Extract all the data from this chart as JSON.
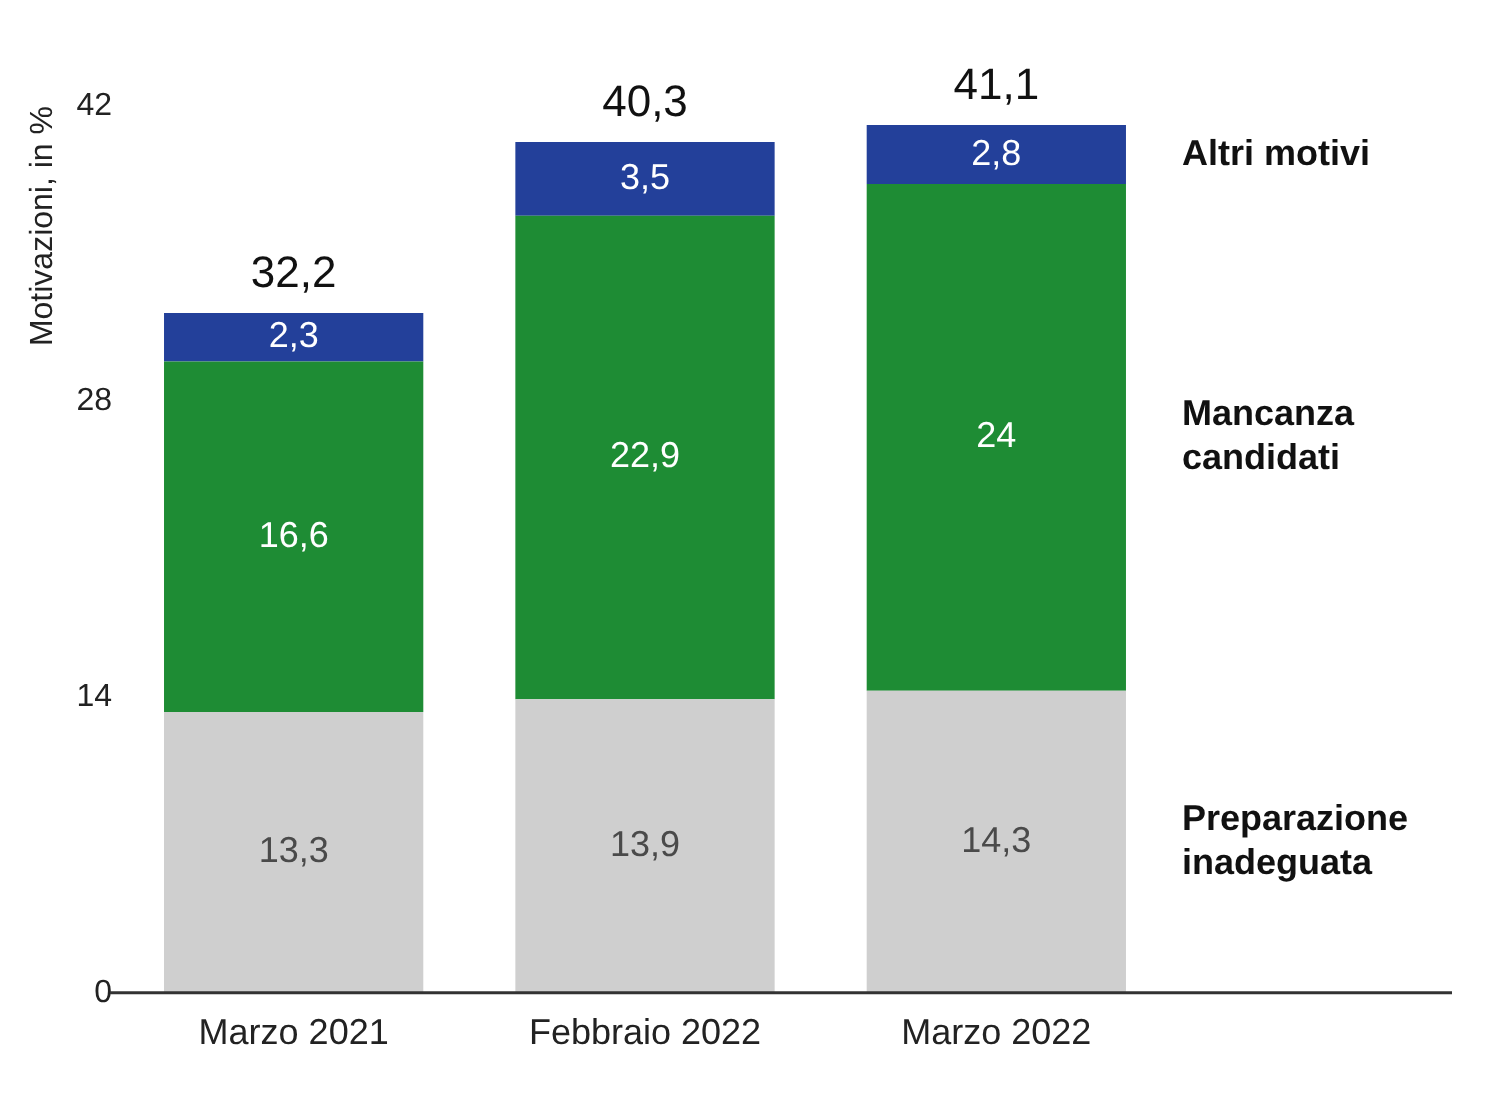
{
  "chart_data": {
    "type": "bar",
    "ylabel": "Motivazioni, in %",
    "categories": [
      "Marzo 2021",
      "Febbraio 2022",
      "Marzo 2022"
    ],
    "stacked": true,
    "ylim": [
      0,
      42
    ],
    "yticks": [
      0,
      14,
      28,
      42
    ],
    "grid": false,
    "legend": "right",
    "series": [
      {
        "name": "Preparazione inadeguata",
        "color": "#cfcfcf",
        "values": [
          13.3,
          13.9,
          14.3
        ],
        "value_labels": [
          "13,3",
          "13,9",
          "14,3"
        ]
      },
      {
        "name": "Mancanza candidati",
        "color": "#1e8c34",
        "values": [
          16.6,
          22.9,
          24
        ],
        "value_labels": [
          "16,6",
          "22,9",
          "24"
        ]
      },
      {
        "name": "Altri motivi",
        "color": "#23409a",
        "values": [
          2.3,
          3.5,
          2.8
        ],
        "value_labels": [
          "2,3",
          "3,5",
          "2,8"
        ]
      }
    ],
    "totals": [
      "32,2",
      "40,3",
      "41,1"
    ]
  }
}
